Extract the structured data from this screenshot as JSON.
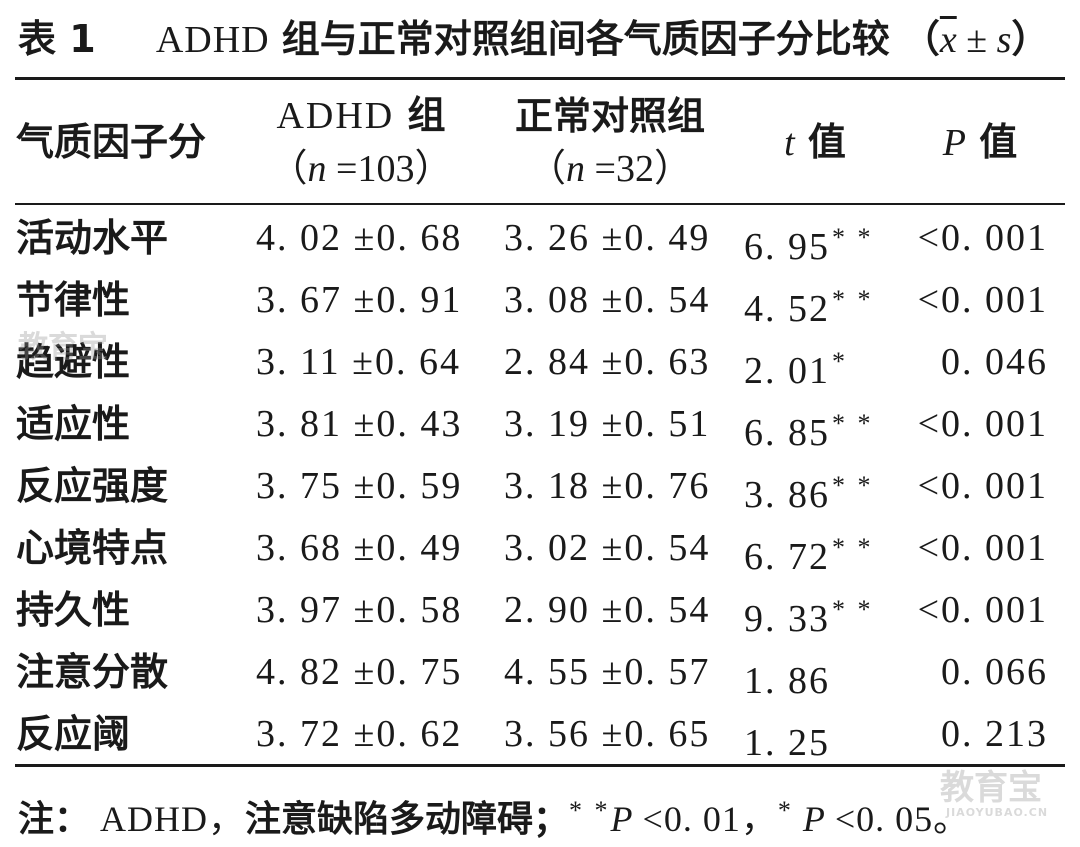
{
  "caption": {
    "label": "表 1",
    "title_en": "ADHD",
    "title_cn": "组与正常对照组间各气质因子分比较",
    "open_paren": "（",
    "xbar": "x",
    "pm": " ± ",
    "s": "s",
    "close_paren": "）"
  },
  "headers": {
    "col1": "气质因子分",
    "col2_line1_en": "ADHD",
    "col2_line1_cn": " 组",
    "col2_line2_open": "（",
    "col2_line2_n": "n",
    "col2_line2_val": " =103）",
    "col3_line1": "正常对照组",
    "col3_line2_open": "（",
    "col3_line2_n": "n",
    "col3_line2_val": " =32）",
    "col4_sym": "t",
    "col4_cn": " 值",
    "col5_sym": "P",
    "col5_cn": " 值"
  },
  "rows": [
    {
      "name": "活动水平",
      "adhd": "4. 02 ±0. 68",
      "normal": "3. 26 ±0. 49",
      "t": "6. 95",
      "sig": "* *",
      "p": "<0. 001"
    },
    {
      "name": "节律性",
      "adhd": "3. 67 ±0. 91",
      "normal": "3. 08 ±0. 54",
      "t": "4. 52",
      "sig": "* *",
      "p": "<0. 001"
    },
    {
      "name": "趋避性",
      "adhd": "3. 11 ±0. 64",
      "normal": "2. 84 ±0. 63",
      "t": "2. 01",
      "sig": "*",
      "p": "0. 046"
    },
    {
      "name": "适应性",
      "adhd": "3. 81 ±0. 43",
      "normal": "3. 19 ±0. 51",
      "t": "6. 85",
      "sig": "* *",
      "p": "<0. 001"
    },
    {
      "name": "反应强度",
      "adhd": "3. 75 ±0. 59",
      "normal": "3. 18 ±0. 76",
      "t": "3. 86",
      "sig": "* *",
      "p": "<0. 001"
    },
    {
      "name": "心境特点",
      "adhd": "3. 68 ±0. 49",
      "normal": "3. 02 ±0. 54",
      "t": "6. 72",
      "sig": "* *",
      "p": "<0. 001"
    },
    {
      "name": "持久性",
      "adhd": "3. 97 ±0. 58",
      "normal": "2. 90 ±0. 54",
      "t": "9. 33",
      "sig": "* *",
      "p": "<0. 001"
    },
    {
      "name": "注意分散",
      "adhd": "4. 82 ±0. 75",
      "normal": "4. 55 ±0. 57",
      "t": "1. 86",
      "sig": "",
      "p": "0. 066"
    },
    {
      "name": "反应阈",
      "adhd": "3. 72 ±0. 62",
      "normal": "3. 56 ±0. 65",
      "t": "1. 25",
      "sig": "",
      "p": "0. 213"
    }
  ],
  "note": {
    "prefix": "注：",
    "en": " ADHD，",
    "cn": "注意缺陷多动障碍；",
    "sig2": "* *",
    "p1": "P",
    "v1": " <0. 01，",
    "sig1": "*",
    "p2": " P",
    "v2": " <0. 05。"
  },
  "watermarks": {
    "left": "教育宝",
    "right": "教育宝",
    "right_small": "JIAOYUBAO.CN"
  }
}
